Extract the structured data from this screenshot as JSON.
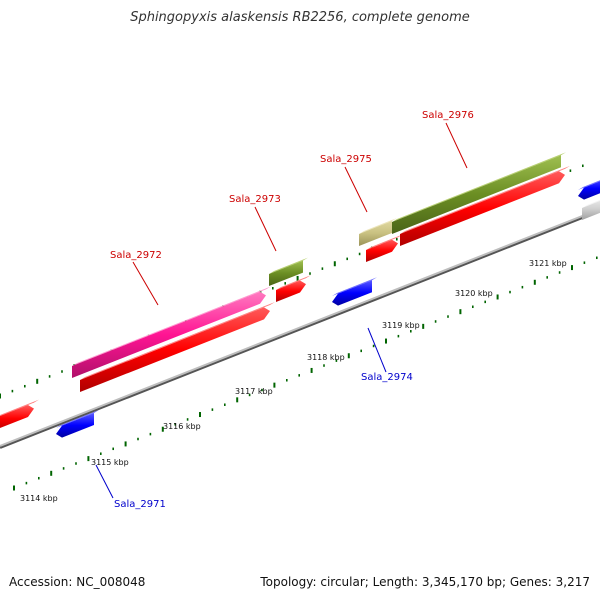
{
  "title": "Sphingopyxis alaskensis RB2256, complete genome",
  "footer": {
    "accession": "Accession: NC_008048",
    "summary": "Topology: circular; Length: 3,345,170 bp; Genes: 3,217"
  },
  "colors": {
    "forward_label": "#cc0000",
    "reverse_label": "#0000cc",
    "cds": "#ff0000",
    "reverse_gene": "#0000ff",
    "olive_gene": "#6b8e23",
    "pink_gene": "#ff1493",
    "khaki_gene": "#c8c080",
    "grey_gene": "#d0d0d0",
    "ticks": "#006400"
  },
  "scale": {
    "unit": "kbp",
    "ticks": [
      {
        "label": "3114 kbp"
      },
      {
        "label": "3115 kbp"
      },
      {
        "label": "3116 kbp"
      },
      {
        "label": "3117 kbp"
      },
      {
        "label": "3118 kbp"
      },
      {
        "label": "3119 kbp"
      },
      {
        "label": "3120 kbp"
      },
      {
        "label": "3121 kbp"
      }
    ]
  },
  "genes": [
    {
      "name": "Sala_2971",
      "strand": "reverse",
      "color": "blue"
    },
    {
      "name": "Sala_2972",
      "strand": "forward",
      "color": "pink"
    },
    {
      "name": "Sala_2973",
      "strand": "forward",
      "color": "olive"
    },
    {
      "name": "Sala_2974",
      "strand": "reverse",
      "color": "blue"
    },
    {
      "name": "Sala_2975",
      "strand": "forward",
      "color": "khaki"
    },
    {
      "name": "Sala_2976",
      "strand": "forward",
      "color": "olive"
    }
  ]
}
